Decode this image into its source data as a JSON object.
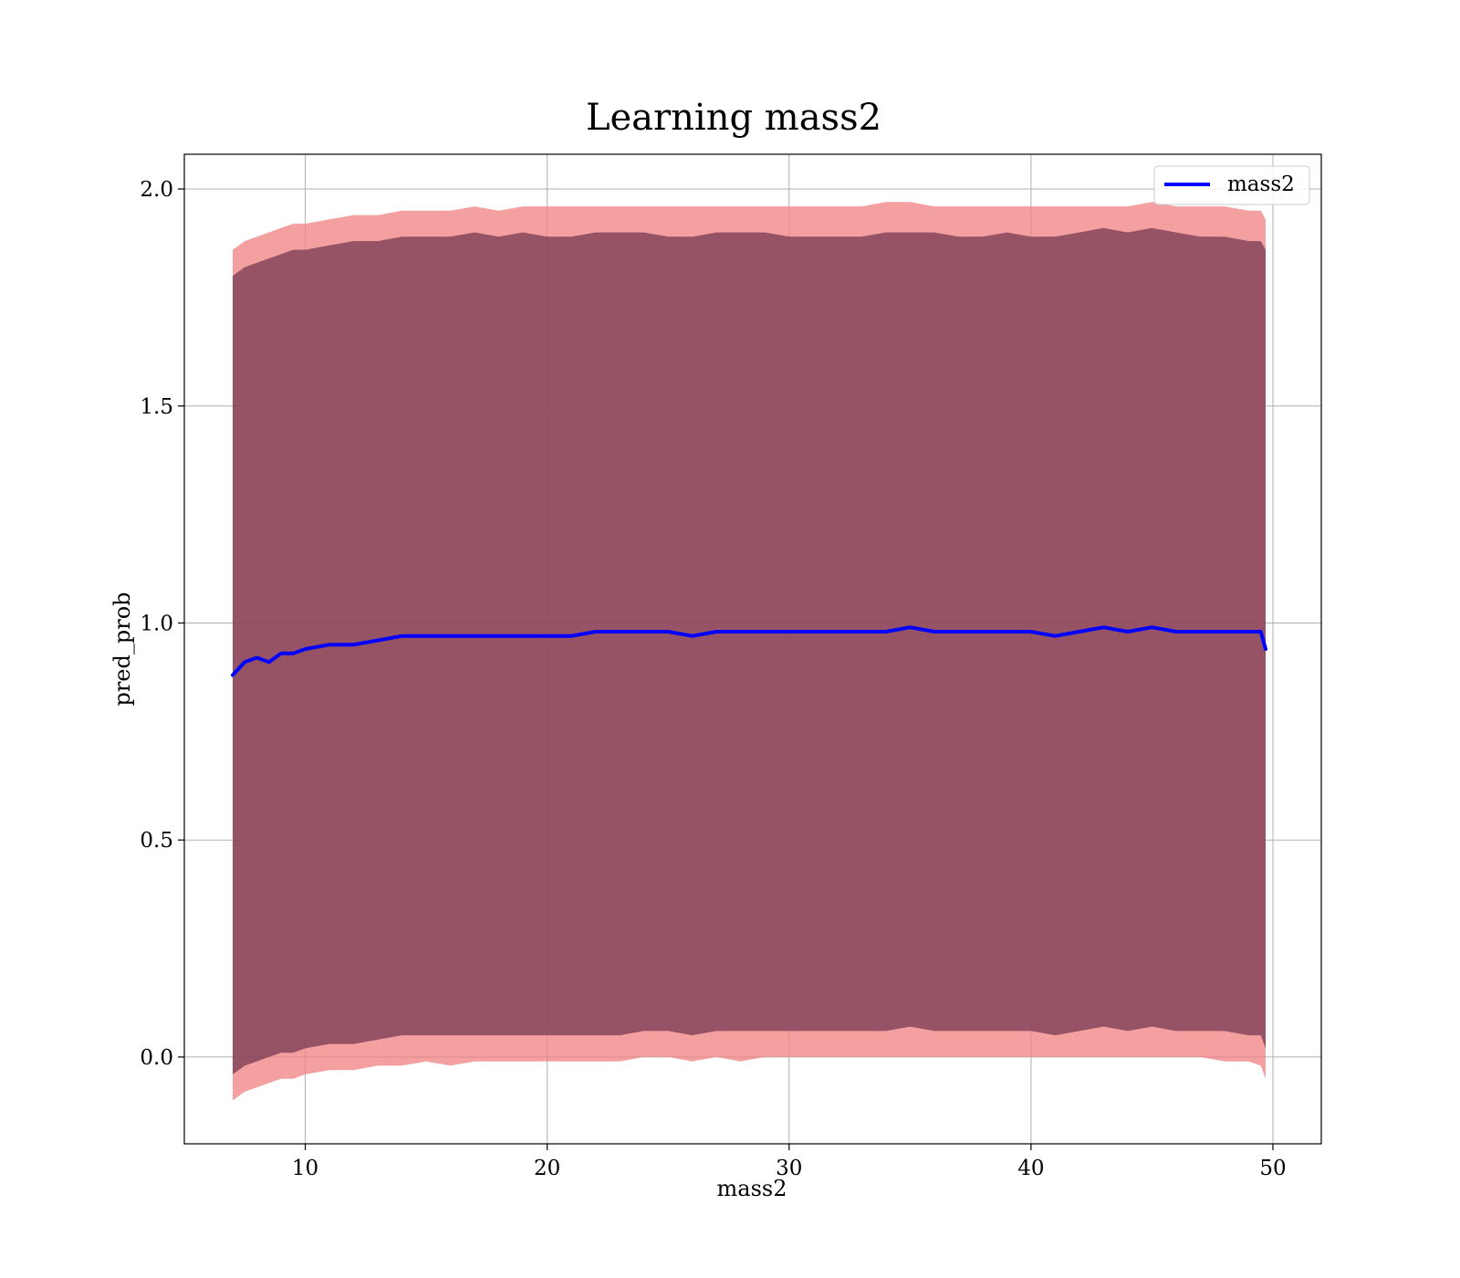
{
  "chart_data": {
    "type": "line",
    "title": "Learning mass2",
    "xlabel": "mass2",
    "ylabel": "pred_prob",
    "xlim": [
      5,
      52
    ],
    "ylim": [
      -0.2,
      2.08
    ],
    "xticks": [
      10,
      20,
      30,
      40,
      50
    ],
    "yticks": [
      0.0,
      0.5,
      1.0,
      1.5,
      2.0
    ],
    "xtick_labels": [
      "10",
      "20",
      "30",
      "40",
      "50"
    ],
    "ytick_labels": [
      "0.0",
      "0.5",
      "1.0",
      "1.5",
      "2.0"
    ],
    "grid": true,
    "legend": {
      "placement": "top-right",
      "entries": [
        "mass2"
      ]
    },
    "colors": {
      "line": "#0000ff",
      "outer_band": "#f08080",
      "inner_band": "#7a3d55"
    },
    "x": [
      7.0,
      7.5,
      8.0,
      8.5,
      9.0,
      9.5,
      10.0,
      11.0,
      12.0,
      13.0,
      14.0,
      15.0,
      16.0,
      17.0,
      18.0,
      19.0,
      20.0,
      21.0,
      22.0,
      23.0,
      24.0,
      25.0,
      26.0,
      27.0,
      28.0,
      29.0,
      30.0,
      31.0,
      32.0,
      33.0,
      34.0,
      35.0,
      36.0,
      37.0,
      38.0,
      39.0,
      40.0,
      41.0,
      42.0,
      43.0,
      44.0,
      45.0,
      46.0,
      47.0,
      48.0,
      49.0,
      49.5,
      49.7
    ],
    "series": [
      {
        "name": "mass2",
        "values": [
          0.88,
          0.91,
          0.92,
          0.91,
          0.93,
          0.93,
          0.94,
          0.95,
          0.95,
          0.96,
          0.97,
          0.97,
          0.97,
          0.97,
          0.97,
          0.97,
          0.97,
          0.97,
          0.98,
          0.98,
          0.98,
          0.98,
          0.97,
          0.98,
          0.98,
          0.98,
          0.98,
          0.98,
          0.98,
          0.98,
          0.98,
          0.99,
          0.98,
          0.98,
          0.98,
          0.98,
          0.98,
          0.97,
          0.98,
          0.99,
          0.98,
          0.99,
          0.98,
          0.98,
          0.98,
          0.98,
          0.98,
          0.94
        ]
      }
    ],
    "bands": [
      {
        "upper": [
          1.86,
          1.88,
          1.89,
          1.9,
          1.91,
          1.92,
          1.92,
          1.93,
          1.94,
          1.94,
          1.95,
          1.95,
          1.95,
          1.96,
          1.95,
          1.96,
          1.96,
          1.96,
          1.96,
          1.96,
          1.96,
          1.96,
          1.96,
          1.96,
          1.96,
          1.96,
          1.96,
          1.96,
          1.96,
          1.96,
          1.97,
          1.97,
          1.96,
          1.96,
          1.96,
          1.96,
          1.96,
          1.96,
          1.96,
          1.96,
          1.96,
          1.97,
          1.96,
          1.96,
          1.96,
          1.95,
          1.95,
          1.93
        ],
        "lower": [
          -0.1,
          -0.08,
          -0.07,
          -0.06,
          -0.05,
          -0.05,
          -0.04,
          -0.03,
          -0.03,
          -0.02,
          -0.02,
          -0.01,
          -0.02,
          -0.01,
          -0.01,
          -0.01,
          -0.01,
          -0.01,
          -0.01,
          -0.01,
          0.0,
          0.0,
          -0.01,
          0.0,
          -0.01,
          0.0,
          0.0,
          0.0,
          0.0,
          0.0,
          0.0,
          0.0,
          0.0,
          0.0,
          0.0,
          0.0,
          0.0,
          0.0,
          0.0,
          0.0,
          0.0,
          0.0,
          0.0,
          0.0,
          -0.01,
          -0.01,
          -0.02,
          -0.05
        ]
      },
      {
        "upper": [
          1.8,
          1.82,
          1.83,
          1.84,
          1.85,
          1.86,
          1.86,
          1.87,
          1.88,
          1.88,
          1.89,
          1.89,
          1.89,
          1.9,
          1.89,
          1.9,
          1.89,
          1.89,
          1.9,
          1.9,
          1.9,
          1.89,
          1.89,
          1.9,
          1.9,
          1.9,
          1.89,
          1.89,
          1.89,
          1.89,
          1.9,
          1.9,
          1.9,
          1.89,
          1.89,
          1.9,
          1.89,
          1.89,
          1.9,
          1.91,
          1.9,
          1.91,
          1.9,
          1.89,
          1.89,
          1.88,
          1.88,
          1.86
        ],
        "lower": [
          -0.04,
          -0.02,
          -0.01,
          0.0,
          0.01,
          0.01,
          0.02,
          0.03,
          0.03,
          0.04,
          0.05,
          0.05,
          0.05,
          0.05,
          0.05,
          0.05,
          0.05,
          0.05,
          0.05,
          0.05,
          0.06,
          0.06,
          0.05,
          0.06,
          0.06,
          0.06,
          0.06,
          0.06,
          0.06,
          0.06,
          0.06,
          0.07,
          0.06,
          0.06,
          0.06,
          0.06,
          0.06,
          0.05,
          0.06,
          0.07,
          0.06,
          0.07,
          0.06,
          0.06,
          0.06,
          0.05,
          0.05,
          0.02
        ]
      }
    ]
  }
}
